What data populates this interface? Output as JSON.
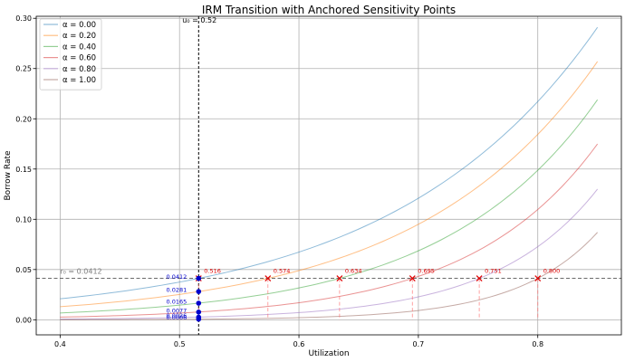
{
  "chart_data": {
    "type": "line",
    "title": "IRM Transition with Anchored Sensitivity Points",
    "xlabel": "Utilization",
    "ylabel": "Borrow Rate",
    "xlim": [
      0.38,
      0.87
    ],
    "ylim": [
      -0.015,
      0.302
    ],
    "xticks": [
      "0.4",
      "0.5",
      "0.6",
      "0.7",
      "0.8"
    ],
    "yticks": [
      "0.00",
      "0.05",
      "0.10",
      "0.15",
      "0.20",
      "0.25",
      "0.30"
    ],
    "grid": true,
    "legend_position": "top-left",
    "series": [
      {
        "name": "α = 0.00",
        "color": "#1f77b4",
        "u_at_r0": 0.516,
        "end_value": 0.291
      },
      {
        "name": "α = 0.20",
        "color": "#ff7f0e",
        "u_at_r0": 0.574,
        "end_value": 0.257
      },
      {
        "name": "α = 0.40",
        "color": "#2ca02c",
        "u_at_r0": 0.634,
        "end_value": 0.219
      },
      {
        "name": "α = 0.60",
        "color": "#d62728",
        "u_at_r0": 0.695,
        "end_value": 0.175
      },
      {
        "name": "α = 0.80",
        "color": "#9467bd",
        "u_at_r0": 0.751,
        "end_value": 0.13
      },
      {
        "name": "α = 1.00",
        "color": "#8c564b",
        "u_at_r0": 0.8,
        "end_value": 0.087
      }
    ],
    "x_range": [
      0.4,
      0.85
    ],
    "reference_line": {
      "label": "r₀ = 0.0412",
      "value": 0.0412
    },
    "u0_line": {
      "label": "u₀ = 0.52",
      "value": 0.516
    },
    "anchor_points": [
      {
        "x": 0.516,
        "label": "0.516"
      },
      {
        "x": 0.574,
        "label": "0.574"
      },
      {
        "x": 0.634,
        "label": "0.634"
      },
      {
        "x": 0.695,
        "label": "0.695"
      },
      {
        "x": 0.751,
        "label": "0.751"
      },
      {
        "x": 0.8,
        "label": "0.800"
      }
    ],
    "u0_points": [
      {
        "y": 0.0412,
        "label": "0.0412"
      },
      {
        "y": 0.0281,
        "label": "0.0281"
      },
      {
        "y": 0.0165,
        "label": "0.0165"
      },
      {
        "y": 0.0077,
        "label": "0.0077"
      },
      {
        "y": 0.0026,
        "label": "0.0026"
      },
      {
        "y": 0.0006,
        "label": "0.0006"
      }
    ]
  }
}
